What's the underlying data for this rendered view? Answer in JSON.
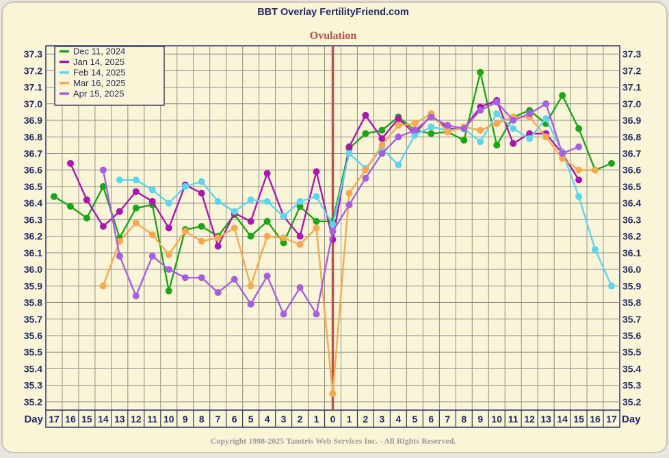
{
  "chart_data": {
    "type": "line",
    "title": "BBT Overlay FertilityFriend.com",
    "marker_label": "Ovulation",
    "marker_x": 0,
    "xlabel": "Day",
    "categories": [
      "17",
      "16",
      "15",
      "14",
      "13",
      "12",
      "11",
      "10",
      "9",
      "8",
      "7",
      "6",
      "5",
      "4",
      "3",
      "2",
      "1",
      "0",
      "1",
      "2",
      "3",
      "4",
      "5",
      "6",
      "7",
      "8",
      "9",
      "10",
      "11",
      "12",
      "13",
      "14",
      "15",
      "16",
      "17"
    ],
    "y_ticks": [
      "35.2",
      "35.3",
      "35.4",
      "35.5",
      "35.6",
      "35.7",
      "35.8",
      "35.9",
      "36.0",
      "36.1",
      "36.2",
      "36.3",
      "36.4",
      "36.5",
      "36.6",
      "36.7",
      "36.8",
      "36.9",
      "37.0",
      "37.1",
      "37.2",
      "37.3"
    ],
    "ylim": [
      35.15,
      37.35
    ],
    "grid": true,
    "legend_position": "top-left",
    "series": [
      {
        "name": "Dec 11, 2024",
        "color": "#16a816",
        "values": [
          36.44,
          36.38,
          36.31,
          36.5,
          36.19,
          36.37,
          36.39,
          35.87,
          36.24,
          36.26,
          36.2,
          36.33,
          36.2,
          36.29,
          36.16,
          36.38,
          36.29,
          36.29,
          36.73,
          36.82,
          36.84,
          36.92,
          36.84,
          36.82,
          36.83,
          36.78,
          37.19,
          36.75,
          36.92,
          36.96,
          36.88,
          37.05,
          36.85,
          36.6,
          36.64
        ]
      },
      {
        "name": "Jan 14, 2025",
        "color": "#b014b0",
        "values": [
          null,
          36.64,
          36.42,
          36.26,
          36.35,
          36.47,
          36.41,
          36.25,
          36.51,
          36.46,
          36.14,
          36.34,
          36.29,
          36.58,
          36.32,
          36.2,
          36.59,
          36.18,
          36.74,
          36.93,
          36.79,
          36.91,
          36.82,
          36.93,
          36.85,
          36.85,
          36.98,
          37.02,
          36.76,
          36.82,
          36.82,
          36.7,
          36.54,
          null,
          null
        ]
      },
      {
        "name": "Feb 14, 2025",
        "color": "#5ad6f0",
        "values": [
          null,
          null,
          null,
          null,
          36.54,
          36.54,
          36.48,
          36.4,
          36.5,
          36.53,
          36.41,
          36.35,
          36.42,
          36.41,
          36.32,
          36.41,
          36.44,
          36.27,
          36.7,
          36.61,
          36.73,
          36.63,
          36.81,
          36.86,
          36.84,
          36.85,
          36.77,
          36.94,
          36.85,
          36.79,
          36.91,
          36.71,
          36.44,
          36.12,
          35.9
        ]
      },
      {
        "name": "Mar 16, 2025",
        "color": "#f7a94c",
        "values": [
          null,
          null,
          null,
          35.9,
          36.17,
          36.28,
          36.21,
          36.09,
          36.23,
          36.17,
          36.19,
          36.25,
          35.9,
          36.2,
          36.19,
          36.15,
          36.25,
          35.25,
          36.46,
          36.6,
          36.75,
          36.87,
          36.88,
          36.94,
          36.83,
          36.86,
          36.84,
          36.88,
          36.92,
          36.92,
          36.8,
          36.67,
          36.6,
          36.6,
          null
        ]
      },
      {
        "name": "Apr 15, 2025",
        "color": "#a85ee0",
        "values": [
          null,
          null,
          null,
          36.6,
          36.08,
          35.84,
          36.08,
          36.0,
          35.95,
          35.95,
          35.86,
          35.94,
          35.79,
          35.96,
          35.73,
          35.89,
          35.73,
          36.23,
          36.39,
          36.55,
          36.7,
          36.8,
          36.84,
          36.92,
          36.87,
          36.85,
          36.96,
          37.01,
          36.9,
          36.94,
          37.0,
          36.7,
          36.74,
          null,
          null
        ]
      }
    ]
  },
  "footer": {
    "copyright": "Copyright 1998-2025 Tamtris Web Services Inc. - All Rights Reserved."
  }
}
